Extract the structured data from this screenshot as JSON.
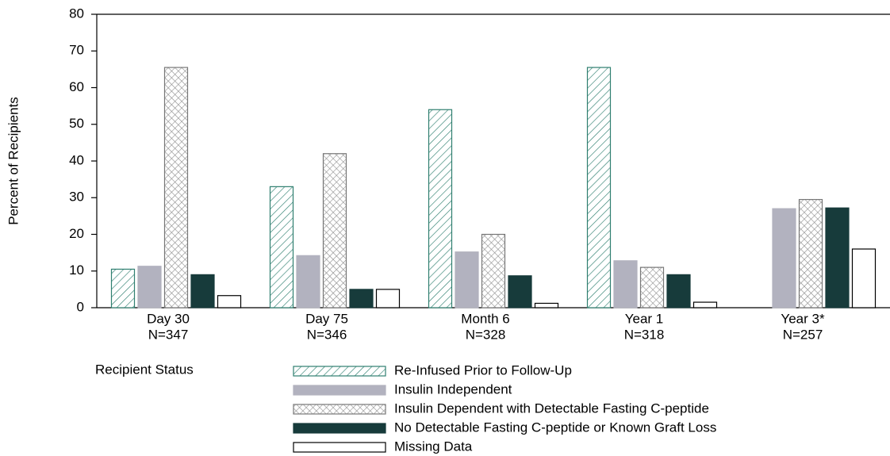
{
  "chart_data": {
    "type": "bar",
    "y_label": "Percent of Recipients",
    "categories": [
      [
        "Day 30",
        "N=347"
      ],
      [
        "Day 75",
        "N=346"
      ],
      [
        "Month 6",
        "N=328"
      ],
      [
        "Year 1",
        "N=318"
      ],
      [
        "Year 3*",
        "N=257"
      ]
    ],
    "ylim": [
      0,
      80
    ],
    "yticks": [
      0,
      10,
      20,
      30,
      40,
      50,
      60,
      70,
      80
    ],
    "legend_title": "Recipient Status",
    "series": [
      {
        "name": "Re-Infused Prior to Follow-Up",
        "color": "#2f7f70",
        "pattern": "diagonal",
        "values": [
          10.5,
          33,
          54,
          65.5,
          null
        ]
      },
      {
        "name": "Insulin Independent",
        "color": "#b2b2bf",
        "pattern": "solid",
        "values": [
          11.3,
          14.2,
          15.2,
          12.8,
          27
        ]
      },
      {
        "name": "Insulin Dependent with Detectable Fasting C-peptide",
        "color": "#8c8c8c",
        "pattern": "cross",
        "values": [
          65.5,
          42,
          20,
          11,
          29.5
        ]
      },
      {
        "name": "No Detectable Fasting C-peptide or Known Graft Loss",
        "color": "#173b3b",
        "pattern": "solid",
        "values": [
          9,
          5,
          8.7,
          9,
          27.2
        ]
      },
      {
        "name": "Missing Data",
        "color": "#ffffff",
        "pattern": "solid",
        "values": [
          3.3,
          5,
          1.2,
          1.5,
          16
        ]
      }
    ]
  }
}
